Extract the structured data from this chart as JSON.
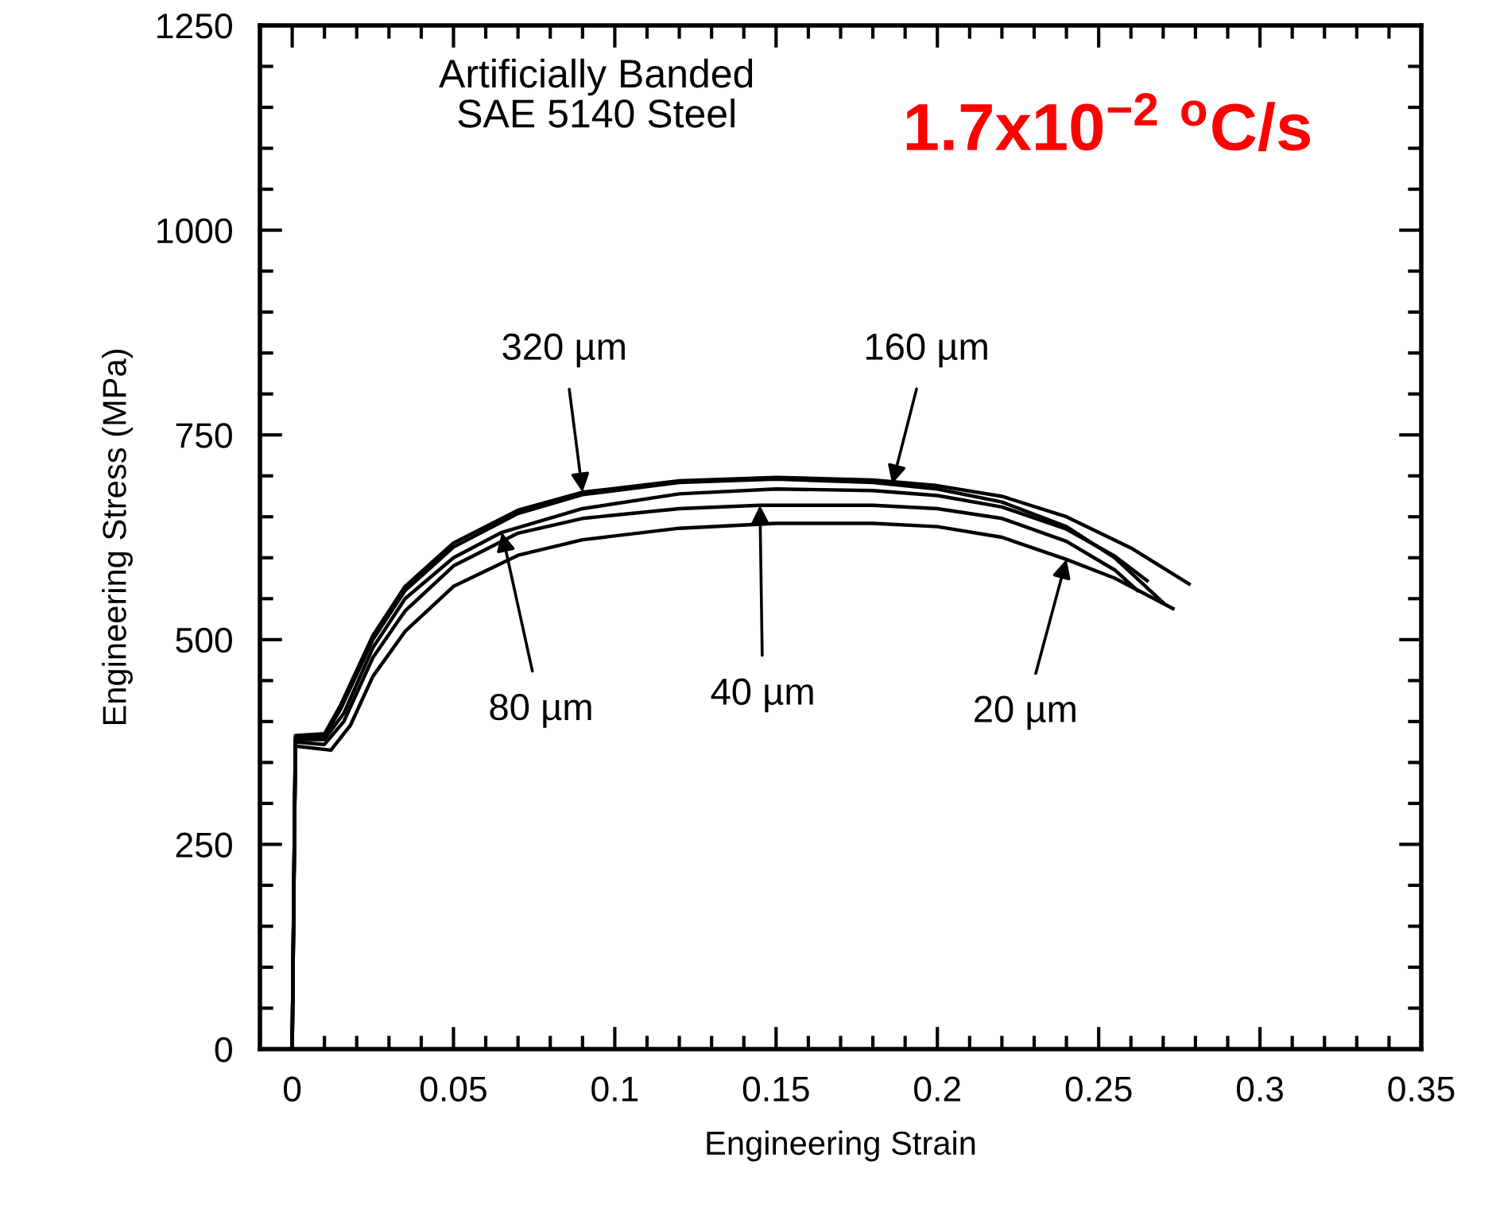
{
  "chart_data": {
    "type": "line",
    "xlabel": "Engineering Strain",
    "ylabel": "Engineering Stress (MPa)",
    "annotations": [
      "Artificially Banded\nSAE 5140 Steel",
      "1.7x10$^{−2}$ $^{o}$C/s",
      {
        "text": "320 µm",
        "x": 0.09,
        "y": 680
      },
      {
        "text": "160 µm",
        "x": 0.186,
        "y": 690
      },
      {
        "text": "80 µm",
        "x": 0.065,
        "y": 631
      },
      {
        "text": "40 µm",
        "x": 0.145,
        "y": 664
      },
      {
        "text": "20 µm",
        "x": 0.24,
        "y": 598
      }
    ],
    "xlim": [
      -0.01,
      0.35
    ],
    "ylim": [
      0,
      1250
    ],
    "xticks": [
      0,
      0.05,
      0.1,
      0.15,
      0.2,
      0.25,
      0.3,
      0.35
    ],
    "yticks": [
      0,
      250,
      500,
      750,
      1000,
      1250
    ],
    "grid": false,
    "marker": "none",
    "line_style": "solid",
    "series": [
      {
        "color": "#000000",
        "x": [
          0,
          0.001,
          0.01,
          0.015,
          0.025,
          0.035,
          0.05,
          0.07,
          0.09,
          0.12,
          0.15,
          0.18,
          0.2,
          0.22,
          0.24,
          0.26,
          0.278
        ],
        "values": [
          0,
          383,
          385,
          420,
          505,
          565,
          618,
          658,
          680,
          694,
          698,
          695,
          688,
          675,
          650,
          612,
          568
        ]
      },
      {
        "color": "#000000",
        "x": [
          0,
          0.001,
          0.01,
          0.015,
          0.025,
          0.035,
          0.05,
          0.07,
          0.09,
          0.12,
          0.15,
          0.18,
          0.2,
          0.22,
          0.24,
          0.255,
          0.27
        ],
        "values": [
          0,
          380,
          382,
          415,
          500,
          560,
          613,
          654,
          677,
          692,
          696,
          692,
          684,
          668,
          638,
          600,
          545
        ]
      },
      {
        "color": "#000000",
        "x": [
          0,
          0.001,
          0.01,
          0.016,
          0.025,
          0.035,
          0.05,
          0.065,
          0.09,
          0.12,
          0.15,
          0.18,
          0.2,
          0.22,
          0.24,
          0.255,
          0.265
        ],
        "values": [
          0,
          378,
          378,
          410,
          490,
          550,
          600,
          631,
          660,
          678,
          684,
          682,
          676,
          662,
          635,
          602,
          572
        ]
      },
      {
        "color": "#000000",
        "x": [
          0,
          0.001,
          0.01,
          0.016,
          0.025,
          0.035,
          0.05,
          0.07,
          0.09,
          0.12,
          0.145,
          0.18,
          0.2,
          0.22,
          0.24,
          0.255,
          0.262
        ],
        "values": [
          0,
          375,
          372,
          400,
          478,
          535,
          590,
          630,
          648,
          660,
          664,
          664,
          660,
          648,
          620,
          585,
          560
        ]
      },
      {
        "color": "#000000",
        "x": [
          0,
          0.001,
          0.012,
          0.018,
          0.025,
          0.035,
          0.05,
          0.07,
          0.09,
          0.12,
          0.15,
          0.18,
          0.2,
          0.22,
          0.24,
          0.255,
          0.273
        ],
        "values": [
          0,
          370,
          365,
          395,
          455,
          510,
          565,
          603,
          622,
          636,
          642,
          642,
          638,
          625,
          598,
          575,
          538
        ]
      }
    ]
  }
}
